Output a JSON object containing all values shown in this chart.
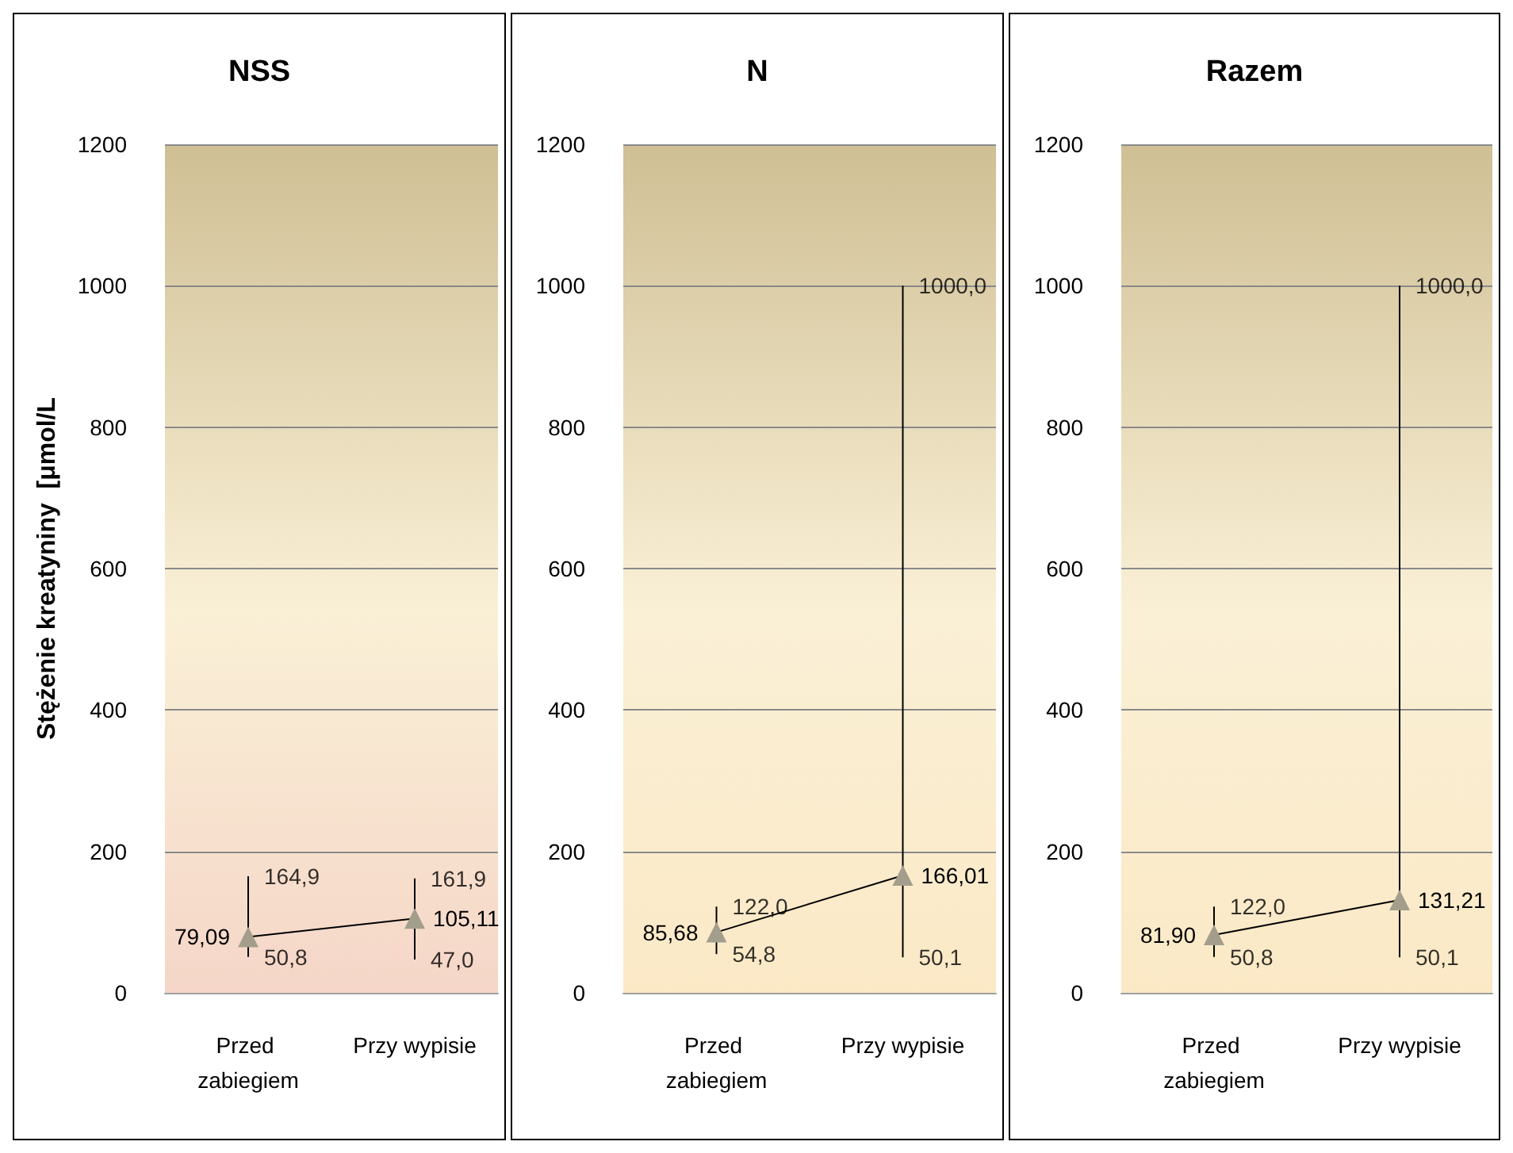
{
  "chart_data": [
    {
      "type": "line",
      "title": "NSS",
      "ylabel": "Stężenie kreatyniny  [μmol/L",
      "categories": [
        "Przed zabiegiem",
        "Przy wypisie"
      ],
      "ylim": [
        0,
        1200
      ],
      "yticks": [
        0,
        200,
        400,
        600,
        800,
        1000,
        1200
      ],
      "grid": "y",
      "marker": "triangle",
      "line_style": "solid",
      "series": [
        {
          "color": "#a39e8c",
          "values": [
            79.09,
            105.11
          ],
          "value_labels": [
            "79,09",
            "105,11"
          ],
          "errors": [
            [
              50.8,
              164.9
            ],
            [
              47.0,
              161.9
            ]
          ]
        }
      ],
      "annotations": [
        {
          "text": "164,9",
          "x": "Przed zabiegiem",
          "y": 164.9
        },
        {
          "text": "50,8",
          "x": "Przed zabiegiem",
          "y": 50.8
        },
        {
          "text": "161,9",
          "x": "Przy wypisie",
          "y": 161.9
        },
        {
          "text": "47,0",
          "x": "Przy wypisie",
          "y": 47.0
        }
      ]
    },
    {
      "type": "line",
      "title": "N",
      "categories": [
        "Przed zabiegiem",
        "Przy wypisie"
      ],
      "ylim": [
        0,
        1200
      ],
      "yticks": [
        0,
        200,
        400,
        600,
        800,
        1000,
        1200
      ],
      "grid": "y",
      "marker": "triangle",
      "line_style": "solid",
      "series": [
        {
          "color": "#a39e8c",
          "values": [
            85.68,
            166.01
          ],
          "value_labels": [
            "85,68",
            "166,01"
          ],
          "errors": [
            [
              54.8,
              122.0
            ],
            [
              50.1,
              1000.0
            ]
          ]
        }
      ],
      "annotations": [
        {
          "text": "122,0",
          "x": "Przed zabiegiem",
          "y": 122.0
        },
        {
          "text": "54,8",
          "x": "Przed zabiegiem",
          "y": 54.8
        },
        {
          "text": "1000,0",
          "x": "Przy wypisie",
          "y": 1000.0
        },
        {
          "text": "50,1",
          "x": "Przy wypisie",
          "y": 50.1
        }
      ]
    },
    {
      "type": "line",
      "title": "Razem",
      "categories": [
        "Przed zabiegiem",
        "Przy wypisie"
      ],
      "ylim": [
        0,
        1200
      ],
      "yticks": [
        0,
        200,
        400,
        600,
        800,
        1000,
        1200
      ],
      "grid": "y",
      "marker": "triangle",
      "line_style": "solid",
      "series": [
        {
          "color": "#a39e8c",
          "values": [
            81.9,
            131.21
          ],
          "value_labels": [
            "81,90",
            "131,21"
          ],
          "errors": [
            [
              50.8,
              122.0
            ],
            [
              50.1,
              1000.0
            ]
          ]
        }
      ],
      "annotations": [
        {
          "text": "122,0",
          "x": "Przed zabiegiem",
          "y": 122.0
        },
        {
          "text": "50,8",
          "x": "Przed zabiegiem",
          "y": 50.8
        },
        {
          "text": "1000,0",
          "x": "Przy wypisie",
          "y": 1000.0
        },
        {
          "text": "50,1",
          "x": "Przy wypisie",
          "y": 50.1
        }
      ]
    }
  ]
}
